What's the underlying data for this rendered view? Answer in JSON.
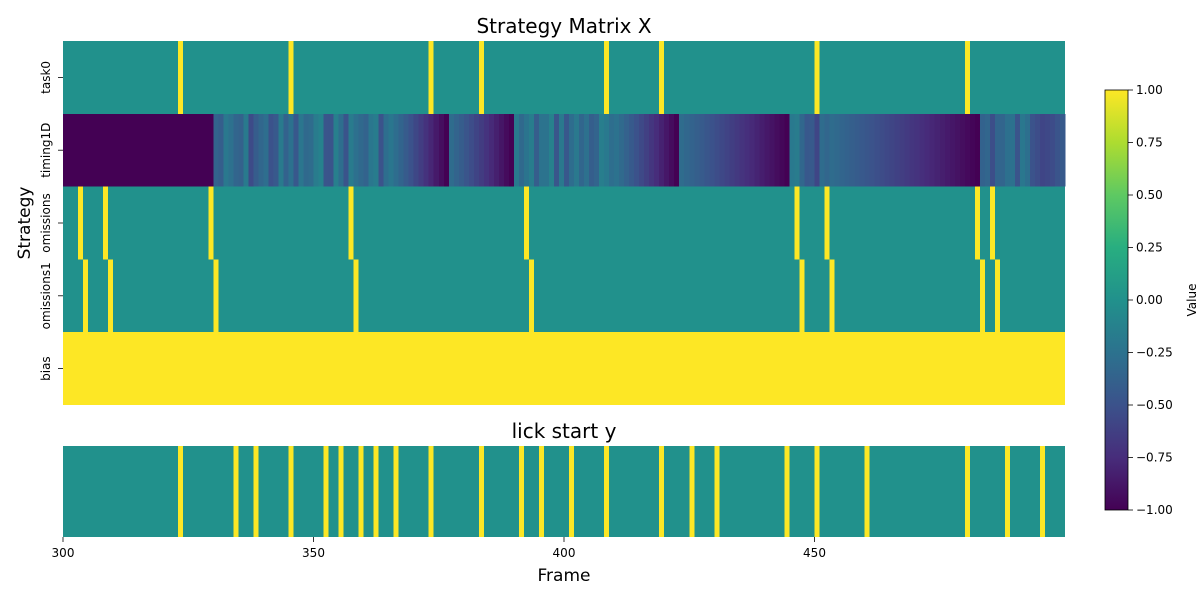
{
  "colors": {
    "yellow": "#fde725",
    "teal": "#21918c",
    "dark_purple": "#440154",
    "colormap": "viridis"
  },
  "chart_data": [
    {
      "type": "heatmap",
      "title": "Strategy Matrix X",
      "xlabel": "",
      "ylabel": "Strategy",
      "xlim": [
        300,
        500
      ],
      "vlim": [
        -1,
        1
      ],
      "rows": [
        "task0",
        "timing1D",
        "omissions",
        "omissions1",
        "bias"
      ],
      "default_value": 0,
      "spikes": {
        "task0": [
          323,
          345,
          373,
          383,
          408,
          419,
          450,
          480
        ],
        "omissions": [
          303,
          308,
          329,
          357,
          392,
          446,
          452,
          482,
          485
        ],
        "omissions1": [
          304,
          309,
          330,
          358,
          393,
          447,
          453,
          483,
          486
        ]
      },
      "bias_value": 1,
      "timing1D_segments": [
        {
          "start": 300,
          "end": 330,
          "value": -1
        },
        {
          "start": 330,
          "end": 348,
          "pattern": "mixed"
        },
        {
          "start": 348,
          "end": 377,
          "pattern": "mixed-ramp"
        },
        {
          "start": 377,
          "end": 390,
          "pattern": "ramp-down"
        },
        {
          "start": 390,
          "end": 423,
          "pattern": "mixed-ramp"
        },
        {
          "start": 423,
          "end": 445,
          "pattern": "ramp-down"
        },
        {
          "start": 445,
          "end": 453,
          "pattern": "mixed"
        },
        {
          "start": 453,
          "end": 483,
          "pattern": "ramp-down"
        },
        {
          "start": 483,
          "end": 500,
          "pattern": "mixed"
        }
      ]
    },
    {
      "type": "heatmap",
      "title": "lick start y",
      "xlabel": "Frame",
      "ylabel": "",
      "xlim": [
        300,
        500
      ],
      "x_ticks": [
        300,
        350,
        400,
        450
      ],
      "spikes": [
        323,
        334,
        338,
        345,
        352,
        355,
        359,
        362,
        366,
        373,
        383,
        391,
        395,
        401,
        408,
        419,
        425,
        430,
        444,
        450,
        460,
        480,
        488,
        495
      ]
    }
  ],
  "colorbar": {
    "label": "Value",
    "ticks": [
      "1.00",
      "0.75",
      "0.50",
      "0.25",
      "0.00",
      "−0.25",
      "−0.50",
      "−0.75",
      "−1.00"
    ]
  }
}
